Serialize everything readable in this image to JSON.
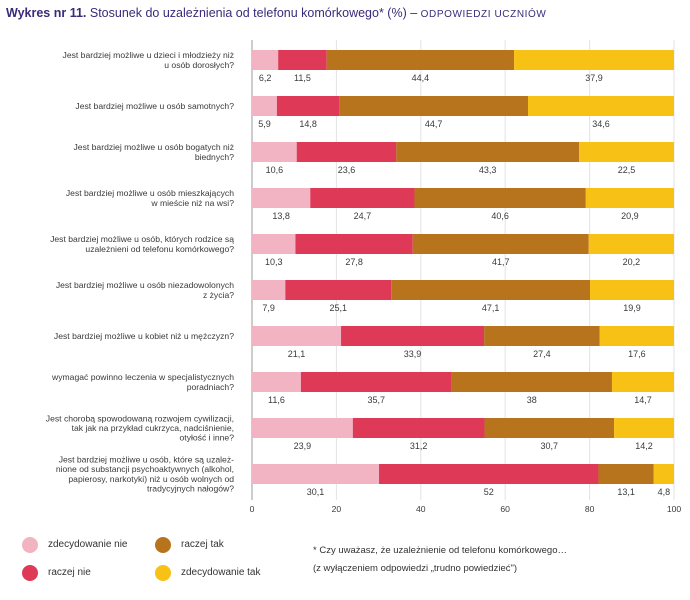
{
  "title": {
    "prefix": "Wykres nr 11.",
    "main": "Stosunek do uzależnienia od telefonu komórkowego* (%) –",
    "suffix": "ODPOWIEDZI UCZNIÓW"
  },
  "colors": {
    "zdecydowanie_nie": "#f2b3c2",
    "raczej_nie": "#de3a58",
    "raczej_tak": "#b8741c",
    "zdecydowanie_tak": "#f7c115"
  },
  "note": {
    "line1": "* Czy uważasz, że uzależnienie od telefonu komórkowego…",
    "line2": "(z wyłączeniem odpowiedzi „trudno powiedzieć\")"
  },
  "chart_data": {
    "type": "bar",
    "orientation": "horizontal",
    "stacked": true,
    "xlim": [
      0,
      100
    ],
    "xticks": [
      "0",
      "20",
      "40",
      "60",
      "80",
      "100"
    ],
    "legend_position": "bottom-left",
    "categories": [
      [
        "Jest bardziej możliwe u dzieci i młodzieży niż",
        "u osób dorosłych?"
      ],
      [
        "Jest bardziej możliwe u osób samotnych?"
      ],
      [
        "Jest bardziej możliwe u osób bogatych niż",
        "biednych?"
      ],
      [
        "Jest bardziej możliwe u osób mieszkających",
        "w mieście niż na wsi?"
      ],
      [
        "Jest bardziej możliwe u osób, których rodzice są",
        "uzależnieni od telefonu komórkowego?"
      ],
      [
        "Jest bardziej możliwe u osób niezadowolonych",
        "z życia?"
      ],
      [
        "Jest bardziej możliwe u kobiet niż u mężczyzn?"
      ],
      [
        "wymagać powinno leczenia w specjalistycznych",
        "poradniach?"
      ],
      [
        "Jest chorobą spowodowaną rozwojem cywilizacji,",
        "tak jak na przykład cukrzyca, nadciśnienie,",
        "otyłość i inne?"
      ],
      [
        "Jest bardziej możliwe u osób, które są uzależ-",
        "nione od substancji psychoaktywnych (alkohol,",
        "papierosy, narkotyki) niż u osób wolnych od",
        "tradycyjnych nałogów?"
      ]
    ],
    "series": [
      {
        "name": "zdecydowanie nie",
        "values": [
          6.2,
          5.9,
          10.6,
          13.8,
          10.3,
          7.9,
          21.1,
          11.6,
          23.9,
          30.1
        ],
        "labels": [
          "6,2",
          "5,9",
          "10,6",
          "13,8",
          "10,3",
          "7,9",
          "21,1",
          "11,6",
          "23,9",
          "30,1"
        ]
      },
      {
        "name": "raczej nie",
        "values": [
          11.5,
          14.8,
          23.6,
          24.7,
          27.8,
          25.1,
          33.9,
          35.7,
          31.2,
          52
        ],
        "labels": [
          "11,5",
          "14,8",
          "23,6",
          "24,7",
          "27,8",
          "25,1",
          "33,9",
          "35,7",
          "31,2",
          "52"
        ]
      },
      {
        "name": "raczej tak",
        "values": [
          44.4,
          44.7,
          43.3,
          40.6,
          41.7,
          47.1,
          27.4,
          38,
          30.7,
          13.1
        ],
        "labels": [
          "44,4",
          "44,7",
          "43,3",
          "40,6",
          "41,7",
          "47,1",
          "27,4",
          "38",
          "30,7",
          "13,1"
        ]
      },
      {
        "name": "zdecydowanie tak",
        "values": [
          37.9,
          34.6,
          22.5,
          20.9,
          20.2,
          19.9,
          17.6,
          14.7,
          14.2,
          4.8
        ],
        "labels": [
          "37,9",
          "34,6",
          "22,5",
          "20,9",
          "20,2",
          "19,9",
          "17,6",
          "14,7",
          "14,2",
          "4,8"
        ]
      }
    ]
  }
}
